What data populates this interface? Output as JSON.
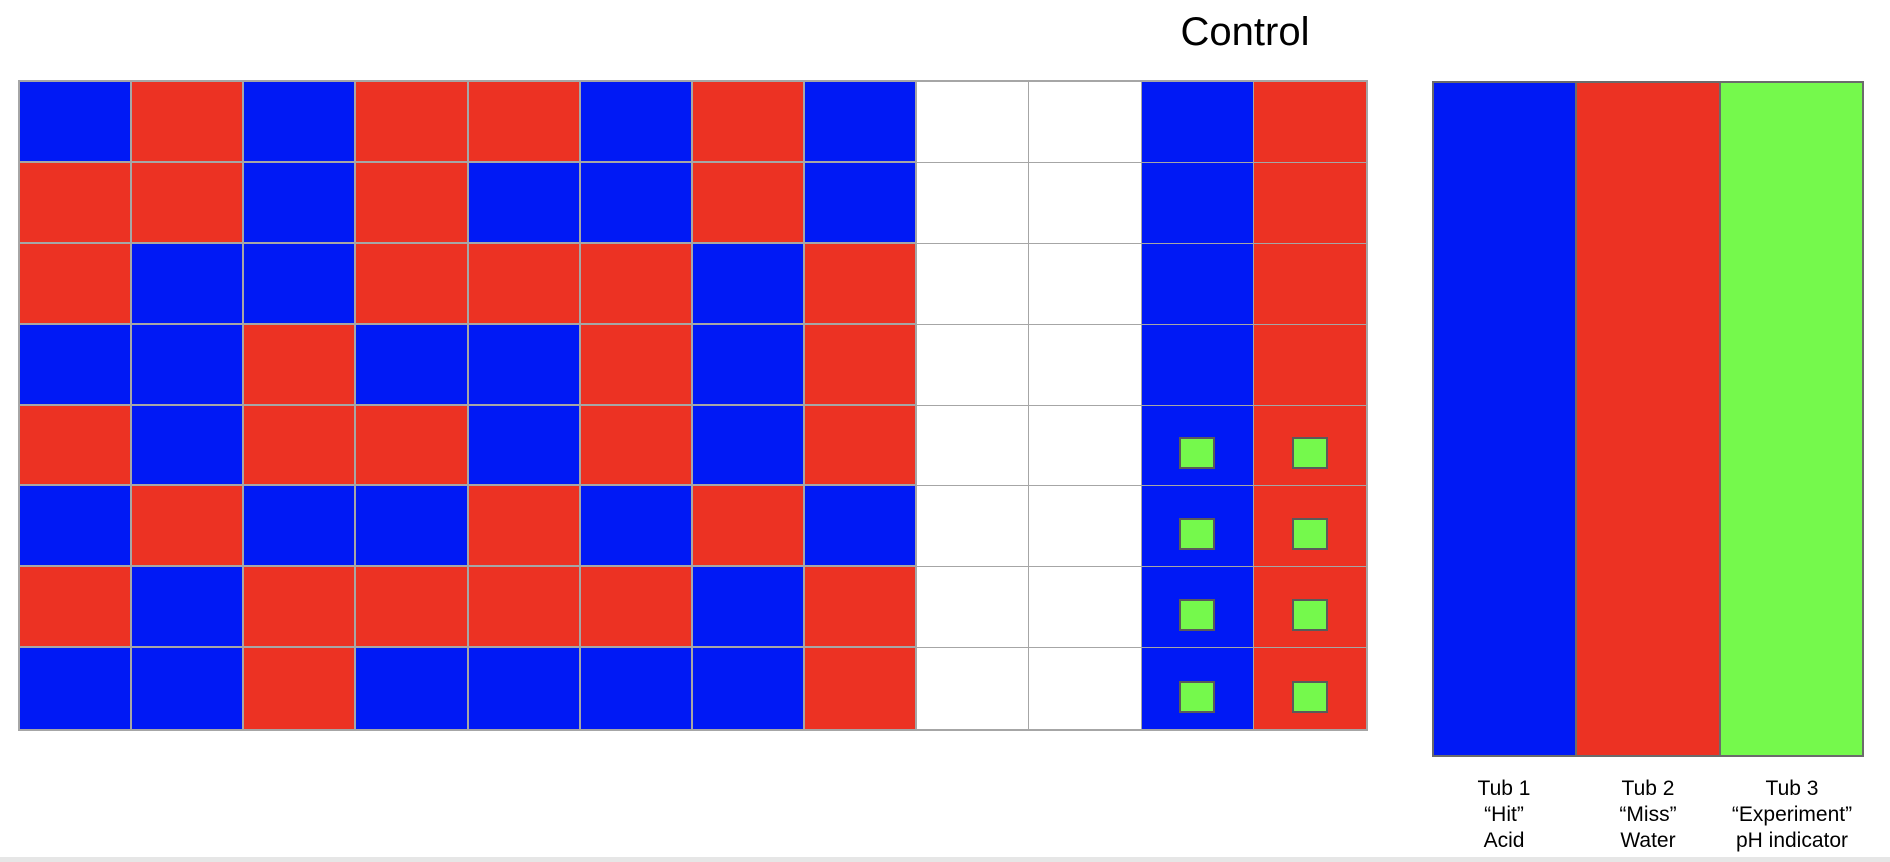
{
  "control_title": "Control",
  "colors": {
    "blue": "#0019f5",
    "red": "#ec3223",
    "green": "#75f94c",
    "white": "#ffffff"
  },
  "grid": {
    "rows": [
      [
        "B",
        "R",
        "B",
        "R",
        "R",
        "B",
        "R",
        "B",
        "W",
        "W",
        "B",
        "R"
      ],
      [
        "R",
        "R",
        "B",
        "R",
        "B",
        "B",
        "R",
        "B",
        "W",
        "W",
        "B",
        "R"
      ],
      [
        "R",
        "B",
        "B",
        "R",
        "R",
        "R",
        "B",
        "R",
        "W",
        "W",
        "B",
        "R"
      ],
      [
        "B",
        "B",
        "R",
        "B",
        "B",
        "R",
        "B",
        "R",
        "W",
        "W",
        "B",
        "R"
      ],
      [
        "R",
        "B",
        "R",
        "R",
        "B",
        "R",
        "B",
        "R",
        "W",
        "W",
        "B",
        "R"
      ],
      [
        "B",
        "R",
        "B",
        "B",
        "R",
        "B",
        "R",
        "B",
        "W",
        "W",
        "B",
        "R"
      ],
      [
        "R",
        "B",
        "R",
        "R",
        "R",
        "R",
        "B",
        "R",
        "W",
        "W",
        "B",
        "R"
      ],
      [
        "B",
        "B",
        "R",
        "B",
        "B",
        "B",
        "B",
        "R",
        "W",
        "W",
        "B",
        "R"
      ]
    ],
    "markers_in_rows": [
      4,
      5,
      6,
      7
    ],
    "markers_in_columns": [
      10,
      11
    ]
  },
  "tubs": [
    {
      "color": "blue",
      "lines": [
        "Tub 1",
        "“Hit”",
        "Acid"
      ]
    },
    {
      "color": "red",
      "lines": [
        "Tub 2",
        "“Miss”",
        "Water"
      ]
    },
    {
      "color": "green",
      "lines": [
        "Tub 3",
        "“Experiment”",
        "pH indicator"
      ]
    }
  ]
}
